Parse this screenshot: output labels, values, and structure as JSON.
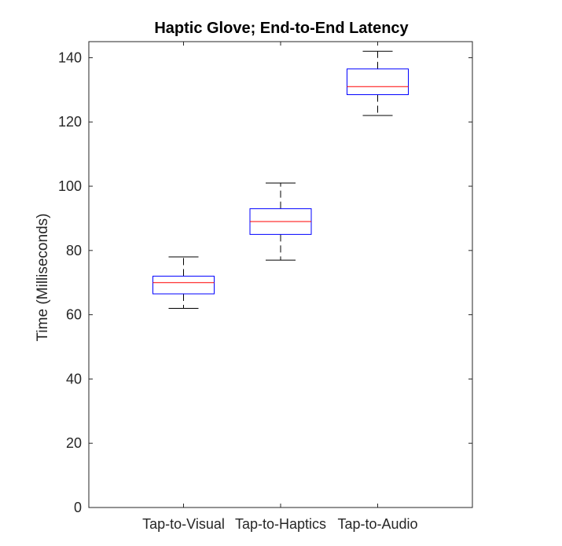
{
  "chart_data": {
    "type": "box",
    "title": "Haptic Glove; End-to-End Latency",
    "xlabel": "",
    "ylabel": "Time (Milliseconds)",
    "ylim": [
      0,
      145
    ],
    "yticks": [
      0,
      20,
      40,
      60,
      80,
      100,
      120,
      140
    ],
    "grid": false,
    "categories": [
      "Tap-to-Visual",
      "Tap-to-Haptics",
      "Tap-to-Audio"
    ],
    "boxes": [
      {
        "label": "Tap-to-Visual",
        "whisker_low": 62,
        "q1": 66.5,
        "median": 70,
        "q3": 72,
        "whisker_high": 78
      },
      {
        "label": "Tap-to-Haptics",
        "whisker_low": 77,
        "q1": 85,
        "median": 89,
        "q3": 93,
        "whisker_high": 101
      },
      {
        "label": "Tap-to-Audio",
        "whisker_low": 122,
        "q1": 128.5,
        "median": 131,
        "q3": 136.5,
        "whisker_high": 142
      }
    ],
    "colors": {
      "box": "#0000ff",
      "median": "#ff0000",
      "whisker": "#000000",
      "axis": "#262626"
    }
  }
}
